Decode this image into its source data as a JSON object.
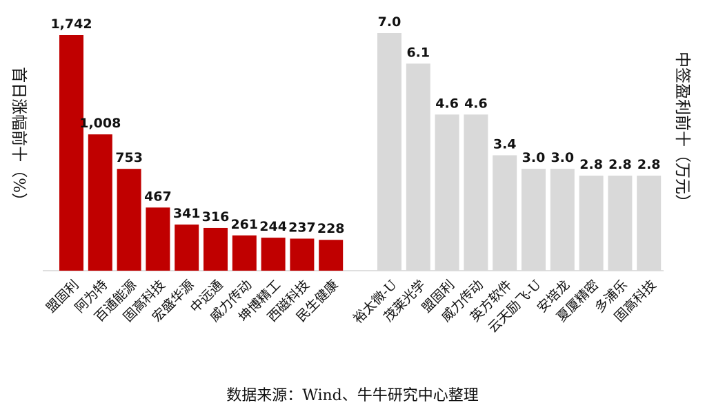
{
  "chart_data": [
    {
      "type": "bar",
      "ylabel": "首日涨幅前十（%）",
      "categories": [
        "盟固利",
        "阿为特",
        "百通能源",
        "固高科技",
        "宏盛华源",
        "中远通",
        "威力传动",
        "坤博精工",
        "西磁科技",
        "民生健康"
      ],
      "values": [
        1742,
        1008,
        753,
        467,
        341,
        316,
        261,
        244,
        237,
        228
      ],
      "value_labels": [
        "1,742",
        "1,008",
        "753",
        "467",
        "341",
        "316",
        "261",
        "244",
        "237",
        "228"
      ],
      "color": "#C00000"
    },
    {
      "type": "bar",
      "ylabel": "中签盈利前十（万元）",
      "categories": [
        "裕太微-U",
        "茂莱光学",
        "盟固利",
        "威力传动",
        "英方软件",
        "云天励飞-U",
        "安培龙",
        "夏厦精密",
        "多浦乐",
        "固高科技"
      ],
      "values": [
        7.0,
        6.1,
        4.6,
        4.6,
        3.4,
        3.0,
        3.0,
        2.8,
        2.8,
        2.8
      ],
      "value_labels": [
        "7.0",
        "6.1",
        "4.6",
        "4.6",
        "3.4",
        "3.0",
        "3.0",
        "2.8",
        "2.8",
        "2.8"
      ],
      "color": "#D9D9D9"
    }
  ],
  "source": "数据来源：Wind、牛牛研究中心整理"
}
